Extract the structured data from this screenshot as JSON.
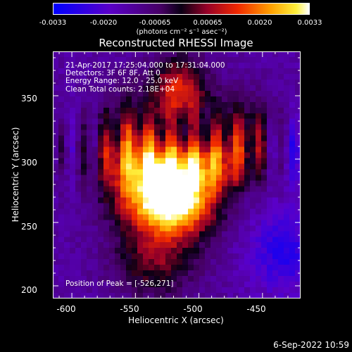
{
  "colorbar": {
    "ticks": [
      "-0.0033",
      "-0.0020",
      "-0.00065",
      "0.00065",
      "0.0020",
      "0.0033"
    ],
    "unit": "(photons cm⁻² s⁻¹ asec⁻²)",
    "range": [
      -0.0033,
      0.0033
    ]
  },
  "title": "Reconstructed RHESSI Image",
  "annotations": {
    "time": "21-Apr-2017 17:25:04.000 to 17:31:04.000",
    "detectors": "Detectors: 3F 6F 8F, Att 0",
    "energy": "Energy Range: 12.0 - 25.0 keV",
    "clean": "Clean     Total counts: 2.18E+04",
    "peak": "Position of Peak = [-526,271]"
  },
  "axes": {
    "xlabel": "Heliocentric X (arcsec)",
    "ylabel": "Heliocentric Y (arcsec)",
    "xticks": [
      "-600",
      "-550",
      "-500",
      "-450"
    ],
    "yticks": [
      "350",
      "300",
      "250",
      "200"
    ],
    "xrange": [
      -615,
      -420
    ],
    "yrange": [
      190,
      385
    ]
  },
  "footer": "6-Sep-2022 10:59",
  "colors": {
    "background": "#000000",
    "text": "#ffffff"
  }
}
